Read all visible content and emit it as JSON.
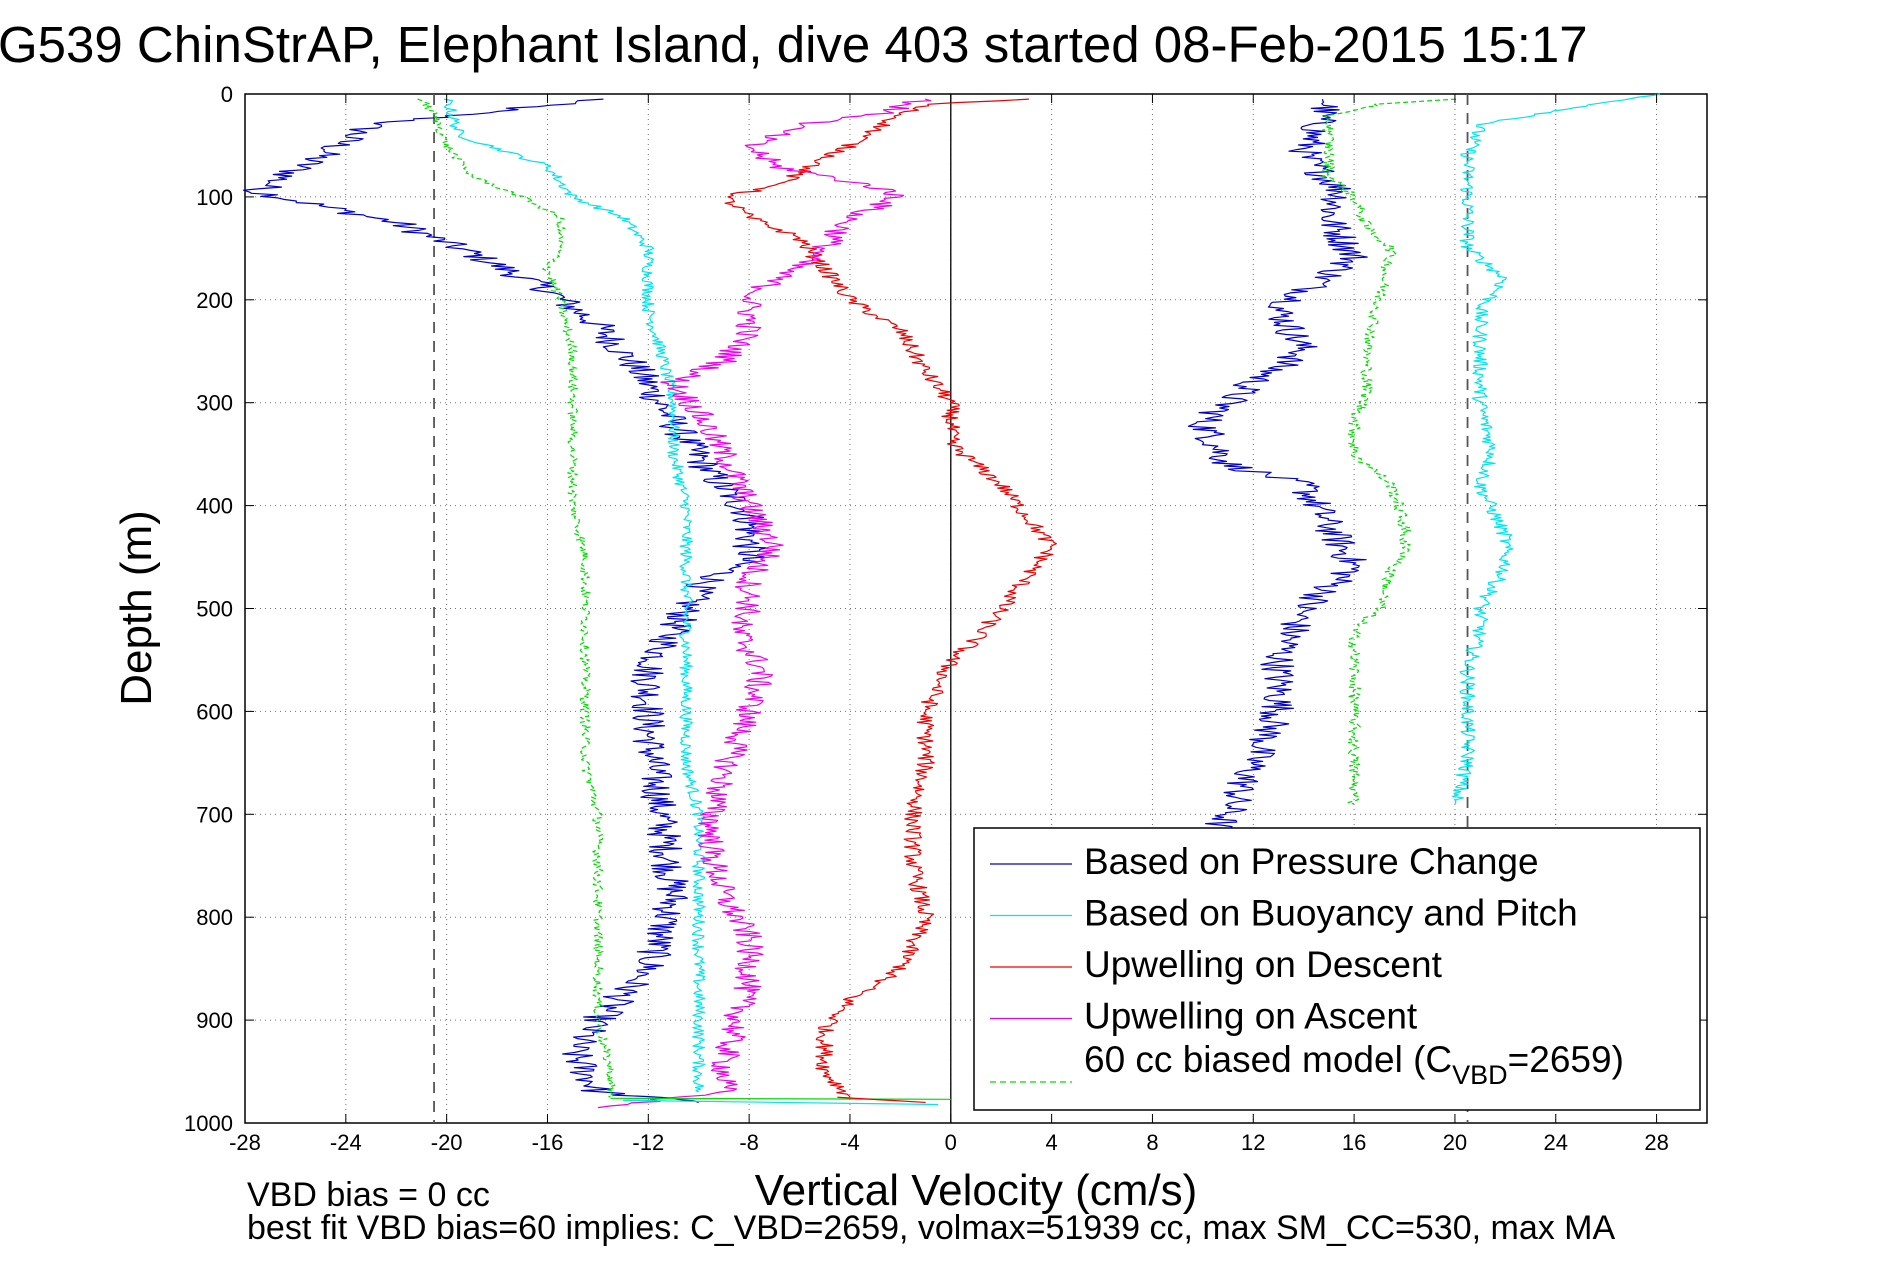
{
  "title": "G539 ChinStrAP, Elephant Island, dive 403 started 08-Feb-2015 15:17",
  "notes": {
    "line1": "VBD bias = 0 cc",
    "line2": "best fit VBD bias=60 implies: C_VBD=2659, volmax=51939 cc, max SM_CC=530, max MA"
  },
  "colors": {
    "pressure": "#0000cc",
    "buoyancy": "#00e5ee",
    "descent": "#ee0000",
    "ascent": "#ee00ee",
    "model": "#00dd00"
  },
  "chart_data": {
    "type": "line",
    "xlabel": "Vertical Velocity (cm/s)",
    "ylabel": "Depth (m)",
    "xlim": [
      -28,
      30
    ],
    "ylim": [
      0,
      1000
    ],
    "y_reversed": true,
    "grid": true,
    "legend_position": "bottom-right",
    "xticks": [
      -28,
      -24,
      -20,
      -16,
      -12,
      -8,
      -4,
      0,
      4,
      8,
      12,
      16,
      20,
      24,
      28
    ],
    "yticks": [
      0,
      100,
      200,
      300,
      400,
      500,
      600,
      700,
      800,
      900,
      1000
    ],
    "reference_lines": [
      {
        "axis": "x",
        "value": 0,
        "style": "solid"
      },
      {
        "axis": "x",
        "value": -20.5,
        "style": "dashed"
      },
      {
        "axis": "x",
        "value": 20.5,
        "style": "dashed"
      }
    ],
    "series": [
      {
        "name": "Based on Pressure Change",
        "key": "pressure",
        "style": "solid",
        "noise": 0.7,
        "points": [
          [
            -14,
            5
          ],
          [
            -23,
            30
          ],
          [
            -25,
            60
          ],
          [
            -27.5,
            95
          ],
          [
            -22,
            125
          ],
          [
            -19,
            155
          ],
          [
            -16,
            190
          ],
          [
            -14,
            225
          ],
          [
            -12.5,
            265
          ],
          [
            -11,
            320
          ],
          [
            -9.5,
            370
          ],
          [
            -8,
            410
          ],
          [
            -8,
            450
          ],
          [
            -10,
            480
          ],
          [
            -11,
            520
          ],
          [
            -12,
            560
          ],
          [
            -12,
            620
          ],
          [
            -11.5,
            700
          ],
          [
            -11,
            780
          ],
          [
            -12,
            850
          ],
          [
            -14,
            900
          ],
          [
            -15,
            930
          ],
          [
            -14,
            970
          ],
          [
            -10,
            980
          ]
        ]
      },
      {
        "name": "Based on Pressure Change",
        "key": "pressure",
        "style": "solid",
        "noise": 0.7,
        "legend": false,
        "points": [
          [
            15,
            5
          ],
          [
            14,
            60
          ],
          [
            15.5,
            95
          ],
          [
            15,
            120
          ],
          [
            16,
            160
          ],
          [
            13,
            210
          ],
          [
            14,
            250
          ],
          [
            12,
            280
          ],
          [
            10,
            320
          ],
          [
            11,
            360
          ],
          [
            14,
            380
          ],
          [
            15,
            420
          ],
          [
            16,
            460
          ],
          [
            14,
            500
          ],
          [
            13,
            550
          ],
          [
            13,
            600
          ],
          [
            12,
            650
          ],
          [
            11,
            700
          ],
          [
            10.5,
            715
          ]
        ]
      },
      {
        "name": "Based on Buoyancy and Pitch",
        "key": "buoyancy",
        "style": "solid",
        "noise": 0.25,
        "points": [
          [
            -20,
            5
          ],
          [
            -19.5,
            40
          ],
          [
            -16,
            70
          ],
          [
            -15,
            100
          ],
          [
            -13,
            120
          ],
          [
            -12,
            150
          ],
          [
            -12,
            180
          ],
          [
            -12,
            210
          ],
          [
            -11.5,
            250
          ],
          [
            -11,
            300
          ],
          [
            -11,
            350
          ],
          [
            -10.5,
            400
          ],
          [
            -10.5,
            450
          ],
          [
            -10.5,
            500
          ],
          [
            -10.5,
            550
          ],
          [
            -10.5,
            600
          ],
          [
            -10.5,
            650
          ],
          [
            -10,
            700
          ],
          [
            -10,
            800
          ],
          [
            -10,
            850
          ],
          [
            -10,
            900
          ],
          [
            -10,
            940
          ],
          [
            -10,
            970
          ]
        ]
      },
      {
        "name": "Based on Buoyancy and Pitch",
        "key": "buoyancy",
        "style": "solid",
        "noise": 0.3,
        "legend": false,
        "points": [
          [
            28,
            0
          ],
          [
            21,
            30
          ],
          [
            20.5,
            60
          ],
          [
            20.5,
            100
          ],
          [
            20.5,
            150
          ],
          [
            22,
            180
          ],
          [
            21,
            210
          ],
          [
            21,
            240
          ],
          [
            21,
            300
          ],
          [
            21.5,
            350
          ],
          [
            21,
            380
          ],
          [
            22,
            430
          ],
          [
            22,
            460
          ],
          [
            21,
            500
          ],
          [
            21,
            520
          ],
          [
            20.5,
            560
          ],
          [
            20.5,
            600
          ],
          [
            20.5,
            650
          ],
          [
            20,
            690
          ]
        ]
      },
      {
        "name": "Upwelling on Descent",
        "key": "descent",
        "style": "solid",
        "noise": 0.35,
        "points": [
          [
            3,
            5
          ],
          [
            -1,
            10
          ],
          [
            -2,
            20
          ],
          [
            -4,
            50
          ],
          [
            -7,
            90
          ],
          [
            -9,
            100
          ],
          [
            -8,
            120
          ],
          [
            -6,
            140
          ],
          [
            -5,
            170
          ],
          [
            -4,
            200
          ],
          [
            -2,
            230
          ],
          [
            -1,
            270
          ],
          [
            0,
            300
          ],
          [
            0,
            340
          ],
          [
            1,
            360
          ],
          [
            2,
            380
          ],
          [
            3,
            410
          ],
          [
            4,
            440
          ],
          [
            3,
            470
          ],
          [
            2,
            500
          ],
          [
            1,
            530
          ],
          [
            0,
            550
          ],
          [
            -1,
            600
          ],
          [
            -1,
            650
          ],
          [
            -1.5,
            700
          ],
          [
            -1.5,
            750
          ],
          [
            -1,
            800
          ],
          [
            -2,
            850
          ],
          [
            -4,
            880
          ],
          [
            -5,
            910
          ],
          [
            -5,
            950
          ],
          [
            -4,
            975
          ]
        ]
      },
      {
        "name": "Upwelling on Ascent",
        "key": "ascent",
        "style": "solid",
        "noise": 0.55,
        "points": [
          [
            -1,
            5
          ],
          [
            -3,
            20
          ],
          [
            -6,
            30
          ],
          [
            -8,
            50
          ],
          [
            -7,
            70
          ],
          [
            -5,
            80
          ],
          [
            -3,
            90
          ],
          [
            -2,
            100
          ],
          [
            -3,
            110
          ],
          [
            -4,
            120
          ],
          [
            -5,
            150
          ],
          [
            -7,
            180
          ],
          [
            -8,
            200
          ],
          [
            -8,
            230
          ],
          [
            -9,
            260
          ],
          [
            -11,
            280
          ],
          [
            -10,
            310
          ],
          [
            -9,
            350
          ],
          [
            -8,
            400
          ],
          [
            -7,
            440
          ],
          [
            -8,
            470
          ],
          [
            -8,
            500
          ],
          [
            -8.5,
            520
          ],
          [
            -7.5,
            560
          ],
          [
            -8,
            600
          ],
          [
            -9,
            660
          ],
          [
            -9.5,
            700
          ],
          [
            -9.5,
            740
          ],
          [
            -9,
            780
          ],
          [
            -8,
            820
          ],
          [
            -8,
            860
          ],
          [
            -8.5,
            900
          ],
          [
            -9,
            940
          ],
          [
            -9,
            970
          ],
          [
            -14,
            985
          ]
        ]
      },
      {
        "name": "60 cc biased model (C_VBD=2659)",
        "key": "model",
        "style": "dashed",
        "noise": 0.2,
        "points": [
          [
            -21,
            5
          ],
          [
            -20.5,
            20
          ],
          [
            -20,
            50
          ],
          [
            -19,
            80
          ],
          [
            -17,
            100
          ],
          [
            -15.5,
            120
          ],
          [
            -15.5,
            150
          ],
          [
            -16,
            170
          ],
          [
            -15.5,
            200
          ],
          [
            -15,
            250
          ],
          [
            -15,
            300
          ],
          [
            -15,
            350
          ],
          [
            -15,
            400
          ],
          [
            -14.5,
            450
          ],
          [
            -14.5,
            500
          ],
          [
            -14.5,
            550
          ],
          [
            -14.5,
            600
          ],
          [
            -14.5,
            650
          ],
          [
            -14,
            700
          ],
          [
            -14,
            750
          ],
          [
            -14,
            800
          ],
          [
            -14,
            850
          ],
          [
            -14,
            900
          ],
          [
            -13.5,
            950
          ],
          [
            -13.5,
            975
          ]
        ]
      },
      {
        "name": "60 cc biased model (C_VBD=2659)",
        "key": "model",
        "style": "dashed",
        "noise": 0.25,
        "legend": false,
        "points": [
          [
            20,
            5
          ],
          [
            17,
            10
          ],
          [
            15,
            20
          ],
          [
            15,
            50
          ],
          [
            15,
            80
          ],
          [
            16,
            100
          ],
          [
            16.5,
            130
          ],
          [
            17.5,
            150
          ],
          [
            17,
            200
          ],
          [
            16.5,
            250
          ],
          [
            16.5,
            290
          ],
          [
            16,
            320
          ],
          [
            16,
            350
          ],
          [
            17.5,
            380
          ],
          [
            18,
            420
          ],
          [
            18,
            450
          ],
          [
            17.5,
            460
          ],
          [
            17,
            500
          ],
          [
            16,
            520
          ],
          [
            16,
            560
          ],
          [
            16,
            600
          ],
          [
            16,
            650
          ],
          [
            16,
            690
          ]
        ]
      }
    ],
    "legend": [
      {
        "label": "Based on Pressure Change",
        "key": "pressure",
        "style": "solid"
      },
      {
        "label": "Based on Buoyancy and Pitch",
        "key": "buoyancy",
        "style": "solid"
      },
      {
        "label": "Upwelling on Descent",
        "key": "descent",
        "style": "solid"
      },
      {
        "label": "Upwelling on Ascent",
        "key": "ascent",
        "style": "solid"
      },
      {
        "label": "60 cc biased model (C",
        "sub": "VBD",
        "label_end": "=2659)",
        "key": "model",
        "style": "dashed"
      }
    ]
  }
}
